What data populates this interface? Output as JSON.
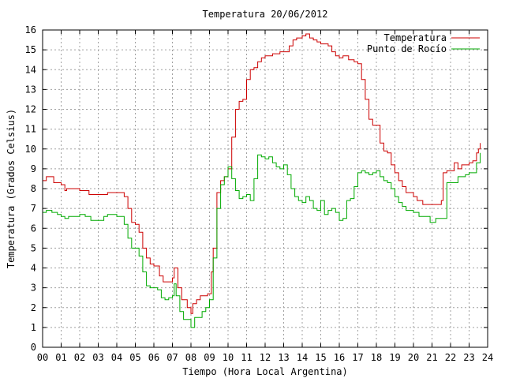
{
  "chart_data": {
    "type": "line",
    "title": "Temperatura 20/06/2012",
    "xlabel": "Tiempo (Hora Local Argentina)",
    "ylabel": "Temperatura (Grados Celsius)",
    "xlim": [
      0,
      24
    ],
    "ylim": [
      0,
      16
    ],
    "x_ticks": [
      "00",
      "01",
      "02",
      "03",
      "04",
      "05",
      "06",
      "07",
      "08",
      "09",
      "10",
      "11",
      "12",
      "13",
      "14",
      "15",
      "16",
      "17",
      "18",
      "19",
      "20",
      "21",
      "22",
      "23",
      "24"
    ],
    "y_ticks": [
      "0",
      "1",
      "2",
      "3",
      "4",
      "5",
      "6",
      "7",
      "8",
      "9",
      "10",
      "11",
      "12",
      "13",
      "14",
      "15",
      "16"
    ],
    "grid": true,
    "legend_position": "top-right",
    "series": [
      {
        "name": "Temperatura",
        "color": "#cc0000",
        "x": [
          0,
          0.2,
          0.5,
          0.6,
          1.0,
          1.2,
          1.3,
          1.5,
          2.0,
          2.5,
          3.0,
          3.3,
          3.5,
          4.0,
          4.4,
          4.6,
          4.8,
          5.0,
          5.2,
          5.4,
          5.6,
          5.8,
          6.0,
          6.3,
          6.5,
          6.8,
          7.0,
          7.1,
          7.3,
          7.5,
          7.8,
          8.0,
          8.1,
          8.3,
          8.5,
          8.7,
          8.9,
          9.1,
          9.2,
          9.4,
          9.6,
          9.8,
          10.0,
          10.2,
          10.4,
          10.6,
          10.8,
          11.0,
          11.2,
          11.4,
          11.6,
          11.8,
          12.0,
          12.2,
          12.4,
          12.6,
          12.8,
          13.0,
          13.3,
          13.5,
          13.7,
          14.0,
          14.2,
          14.4,
          14.6,
          14.8,
          15.0,
          15.2,
          15.4,
          15.6,
          15.8,
          16.0,
          16.2,
          16.5,
          16.8,
          17.0,
          17.2,
          17.4,
          17.6,
          17.8,
          18.0,
          18.2,
          18.4,
          18.6,
          18.8,
          19.0,
          19.2,
          19.4,
          19.6,
          19.8,
          20.0,
          20.2,
          20.5,
          20.8,
          21.0,
          21.3,
          21.5,
          21.6,
          21.8,
          22.0,
          22.2,
          22.4,
          22.6,
          22.8,
          23.0,
          23.2,
          23.4,
          23.5,
          23.6
        ],
        "y": [
          8.4,
          8.6,
          8.6,
          8.3,
          8.2,
          7.9,
          8.0,
          8.0,
          7.9,
          7.7,
          7.7,
          7.7,
          7.8,
          7.8,
          7.6,
          7.0,
          6.3,
          6.2,
          5.8,
          5.0,
          4.5,
          4.2,
          4.1,
          3.6,
          3.3,
          3.3,
          3.5,
          4.0,
          3.0,
          2.4,
          2.0,
          1.7,
          2.2,
          2.4,
          2.6,
          2.6,
          2.7,
          3.8,
          5.0,
          7.8,
          8.4,
          8.6,
          9.0,
          10.6,
          12.0,
          12.4,
          12.5,
          13.5,
          14.0,
          14.1,
          14.4,
          14.6,
          14.7,
          14.7,
          14.8,
          14.8,
          14.9,
          14.9,
          15.2,
          15.5,
          15.6,
          15.7,
          15.8,
          15.6,
          15.5,
          15.4,
          15.3,
          15.3,
          15.2,
          14.9,
          14.7,
          14.6,
          14.7,
          14.5,
          14.4,
          14.3,
          13.5,
          12.5,
          11.5,
          11.2,
          11.2,
          10.3,
          9.9,
          9.8,
          9.2,
          8.8,
          8.4,
          8.1,
          7.8,
          7.8,
          7.6,
          7.4,
          7.2,
          7.2,
          7.2,
          7.2,
          7.4,
          8.8,
          8.9,
          8.9,
          9.3,
          9.0,
          9.2,
          9.2,
          9.3,
          9.4,
          9.8,
          10.0,
          10.3
        ]
      },
      {
        "name": "Punto de Rocío",
        "color": "#00aa00",
        "x": [
          0,
          0.2,
          0.5,
          0.8,
          1.0,
          1.2,
          1.4,
          1.6,
          2.0,
          2.3,
          2.6,
          3.0,
          3.3,
          3.5,
          3.8,
          4.0,
          4.2,
          4.4,
          4.6,
          4.8,
          5.0,
          5.2,
          5.4,
          5.6,
          5.8,
          6.0,
          6.2,
          6.4,
          6.6,
          6.8,
          7.0,
          7.1,
          7.2,
          7.4,
          7.6,
          7.8,
          8.0,
          8.2,
          8.4,
          8.6,
          8.8,
          9.0,
          9.2,
          9.4,
          9.6,
          9.8,
          10.0,
          10.2,
          10.4,
          10.6,
          10.8,
          11.0,
          11.2,
          11.4,
          11.6,
          11.8,
          12.0,
          12.2,
          12.4,
          12.6,
          12.8,
          13.0,
          13.2,
          13.4,
          13.6,
          13.8,
          14.0,
          14.2,
          14.4,
          14.6,
          14.8,
          15.0,
          15.2,
          15.4,
          15.6,
          15.8,
          16.0,
          16.2,
          16.4,
          16.6,
          16.8,
          17.0,
          17.2,
          17.4,
          17.6,
          17.8,
          18.0,
          18.2,
          18.4,
          18.6,
          18.8,
          19.0,
          19.2,
          19.4,
          19.6,
          19.8,
          20.0,
          20.3,
          20.6,
          20.9,
          21.2,
          21.5,
          21.6,
          21.8,
          22.0,
          22.2,
          22.4,
          22.6,
          22.8,
          23.0,
          23.2,
          23.4,
          23.6
        ],
        "y": [
          6.8,
          6.9,
          6.8,
          6.7,
          6.6,
          6.5,
          6.6,
          6.6,
          6.7,
          6.6,
          6.4,
          6.4,
          6.6,
          6.7,
          6.7,
          6.6,
          6.6,
          6.2,
          5.5,
          5.0,
          5.0,
          4.6,
          3.8,
          3.1,
          3.0,
          3.0,
          2.9,
          2.5,
          2.4,
          2.5,
          2.6,
          3.2,
          2.6,
          1.8,
          1.4,
          1.4,
          1.0,
          1.5,
          1.5,
          1.8,
          2.0,
          2.4,
          4.5,
          7.0,
          8.2,
          8.6,
          9.1,
          8.5,
          7.9,
          7.5,
          7.6,
          7.7,
          7.4,
          8.5,
          9.7,
          9.6,
          9.5,
          9.6,
          9.3,
          9.1,
          9.0,
          9.2,
          8.7,
          8.0,
          7.6,
          7.4,
          7.3,
          7.6,
          7.4,
          7.0,
          6.9,
          7.4,
          6.7,
          6.9,
          7.0,
          6.8,
          6.4,
          6.5,
          7.4,
          7.5,
          8.1,
          8.8,
          8.9,
          8.8,
          8.7,
          8.8,
          8.9,
          8.6,
          8.4,
          8.3,
          8.0,
          7.6,
          7.3,
          7.1,
          6.9,
          6.9,
          6.8,
          6.6,
          6.6,
          6.3,
          6.5,
          6.5,
          6.5,
          8.3,
          8.3,
          8.3,
          8.6,
          8.6,
          8.7,
          8.8,
          8.8,
          9.3,
          9.8
        ]
      }
    ]
  }
}
